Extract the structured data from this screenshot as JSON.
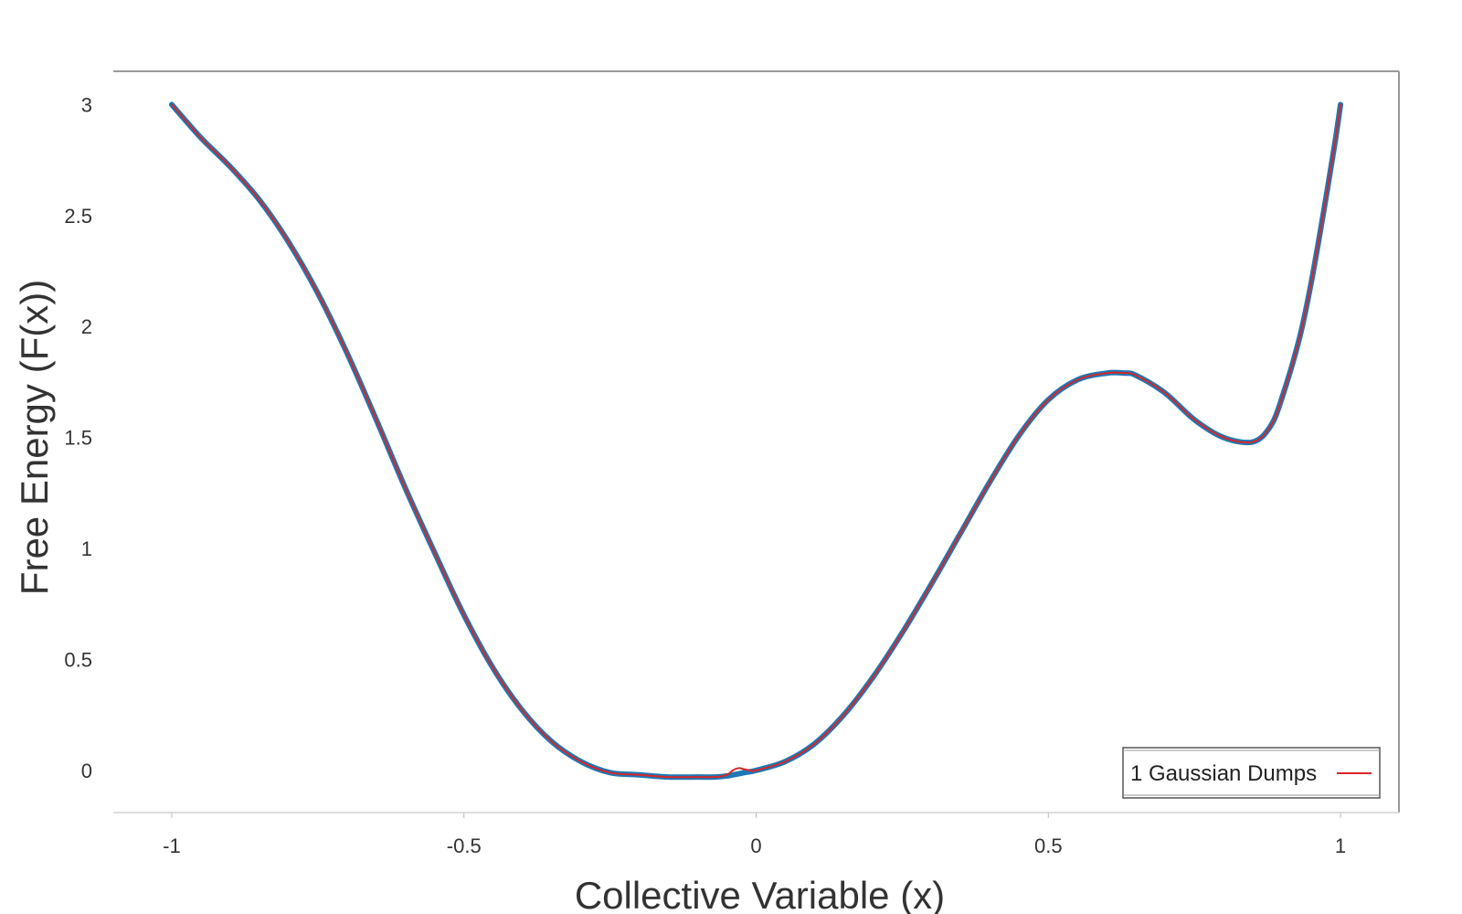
{
  "chart_data": {
    "type": "line",
    "title": "",
    "xlabel": "Collective Variable (x)",
    "ylabel": "Free Energy (F(x))",
    "xlim": [
      -1.1,
      1.1
    ],
    "ylim": [
      -0.19,
      3.15
    ],
    "x_ticks": [
      -1,
      -0.5,
      0,
      0.5,
      1
    ],
    "x_tick_labels": [
      "-1",
      "-0.5",
      "0",
      "0.5",
      "1"
    ],
    "y_ticks": [
      0,
      0.5,
      1,
      1.5,
      2,
      2.5,
      3
    ],
    "y_tick_labels": [
      "0",
      "0.5",
      "1",
      "1.5",
      "2",
      "2.5",
      "3"
    ],
    "grid": false,
    "legend_position": "bottom-right",
    "series": [
      {
        "color": "#1f77b4",
        "x": [
          -1.0,
          -0.95,
          -0.9,
          -0.85,
          -0.8,
          -0.75,
          -0.7,
          -0.65,
          -0.6,
          -0.55,
          -0.5,
          -0.45,
          -0.4,
          -0.35,
          -0.3,
          -0.25,
          -0.2,
          -0.15,
          -0.1,
          -0.07,
          -0.05,
          -0.02,
          0.0,
          0.05,
          0.1,
          0.15,
          0.2,
          0.25,
          0.3,
          0.35,
          0.4,
          0.45,
          0.5,
          0.55,
          0.6,
          0.63,
          0.65,
          0.7,
          0.75,
          0.8,
          0.85,
          0.88,
          0.9,
          0.93,
          0.95,
          0.97,
          0.99,
          1.0
        ],
        "y": [
          3.0,
          2.85,
          2.72,
          2.57,
          2.38,
          2.15,
          1.88,
          1.58,
          1.27,
          0.98,
          0.7,
          0.46,
          0.27,
          0.13,
          0.04,
          -0.01,
          -0.02,
          -0.03,
          -0.03,
          -0.03,
          -0.025,
          -0.01,
          0.0,
          0.04,
          0.12,
          0.25,
          0.42,
          0.62,
          0.84,
          1.07,
          1.3,
          1.51,
          1.67,
          1.76,
          1.79,
          1.79,
          1.78,
          1.7,
          1.58,
          1.5,
          1.48,
          1.55,
          1.68,
          1.95,
          2.2,
          2.5,
          2.82,
          3.0
        ]
      },
      {
        "name": "1 Gaussian Dumps",
        "color": "#d62728",
        "x": [
          -1.0,
          -0.95,
          -0.9,
          -0.85,
          -0.8,
          -0.75,
          -0.7,
          -0.65,
          -0.6,
          -0.55,
          -0.5,
          -0.45,
          -0.4,
          -0.35,
          -0.3,
          -0.25,
          -0.2,
          -0.15,
          -0.1,
          -0.07,
          -0.05,
          -0.04,
          -0.03,
          -0.02,
          -0.01,
          0.0,
          0.05,
          0.1,
          0.15,
          0.2,
          0.25,
          0.3,
          0.35,
          0.4,
          0.45,
          0.5,
          0.55,
          0.6,
          0.63,
          0.65,
          0.7,
          0.75,
          0.8,
          0.85,
          0.88,
          0.9,
          0.93,
          0.95,
          0.97,
          0.99,
          1.0
        ],
        "y": [
          3.0,
          2.85,
          2.72,
          2.57,
          2.38,
          2.15,
          1.88,
          1.58,
          1.27,
          0.98,
          0.7,
          0.46,
          0.27,
          0.13,
          0.04,
          -0.01,
          -0.02,
          -0.03,
          -0.03,
          -0.03,
          -0.02,
          0.0,
          0.01,
          0.005,
          0.0,
          0.0,
          0.04,
          0.12,
          0.25,
          0.42,
          0.62,
          0.84,
          1.07,
          1.3,
          1.51,
          1.67,
          1.76,
          1.79,
          1.79,
          1.78,
          1.7,
          1.58,
          1.5,
          1.48,
          1.55,
          1.68,
          1.95,
          2.2,
          2.5,
          2.82,
          3.0
        ]
      }
    ]
  }
}
